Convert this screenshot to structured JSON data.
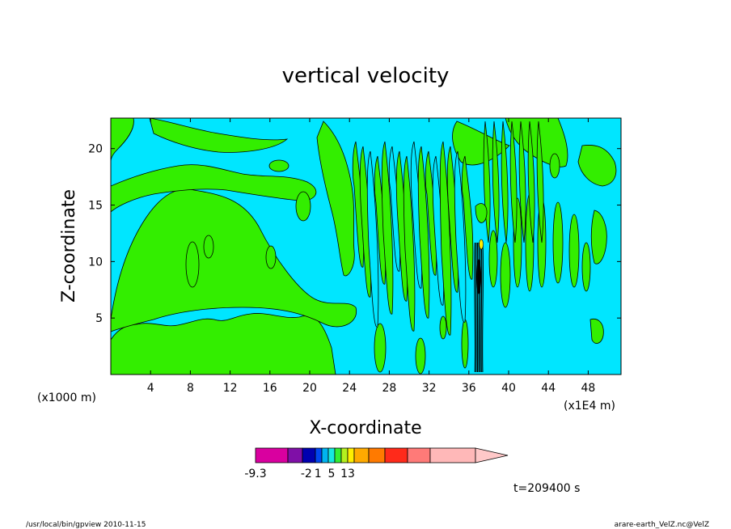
{
  "chart_data": {
    "type": "heatmap",
    "title": "vertical velocity",
    "xlabel": "X-coordinate",
    "ylabel": "Z-coordinate",
    "x_unit_left": "(x1000 m)",
    "x_unit_right": "(x1E4 m)",
    "xlim": [
      0,
      51.3
    ],
    "ylim": [
      0,
      22.7
    ],
    "x_ticks": [
      4,
      8,
      12,
      16,
      20,
      24,
      28,
      32,
      36,
      40,
      44,
      48
    ],
    "y_ticks": [
      5,
      10,
      15,
      20
    ],
    "colorbar": {
      "colors": [
        "#d9009f",
        "#7f0fa7",
        "#0000b0",
        "#0046f0",
        "#00b4f0",
        "#17e8e0",
        "#33ee33",
        "#b4f01e",
        "#ffee00",
        "#ffaa00",
        "#ff7a00",
        "#ff2a1a",
        "#ff7a78",
        "#ffb8b8",
        "#ffc8c8"
      ],
      "labels": [
        "-9.3",
        "-2",
        "1",
        "5",
        "13"
      ],
      "label_positions": [
        0,
        2.3,
        3.4,
        5.5,
        8.0
      ]
    },
    "time_label": "t=209400 s",
    "field_colors": {
      "negative": "#00e6ff",
      "positive": "#33ee00",
      "contour": "#000000"
    }
  },
  "footer": {
    "left": "/usr/local/bin/gpview   2010-11-15",
    "right": "arare-earth_VelZ.nc@VelZ"
  }
}
